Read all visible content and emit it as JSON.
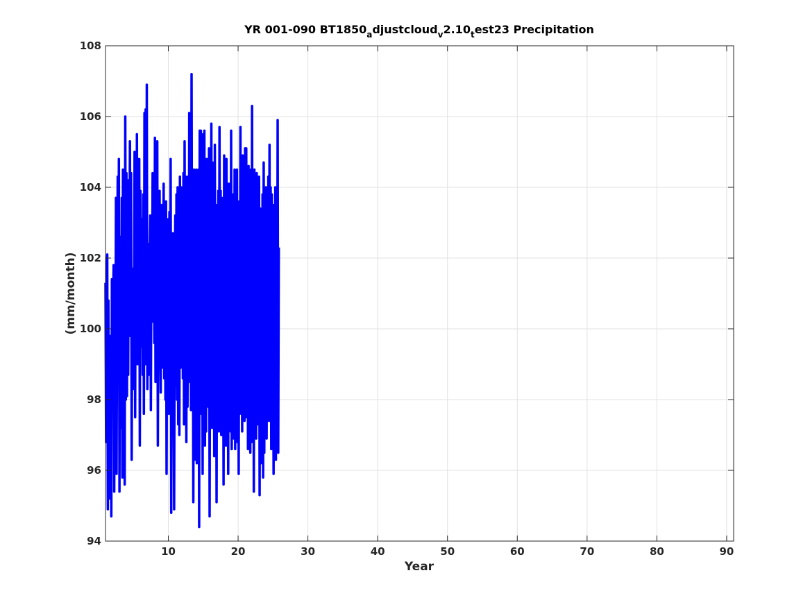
{
  "chart_data": {
    "type": "line",
    "title": {
      "part1": "YR 001-090 BT1850",
      "sub1": "a",
      "part2": "djustcloud",
      "sub2": "v",
      "part3": "2.10",
      "sub3": "t",
      "part4": "est23 Precipitation"
    },
    "xlabel": "Year",
    "ylabel": "(mm/month)",
    "xlim": [
      1,
      91
    ],
    "ylim": [
      94,
      108
    ],
    "xticks": [
      10,
      20,
      30,
      40,
      50,
      60,
      70,
      80,
      90
    ],
    "yticks": [
      94,
      96,
      98,
      100,
      102,
      104,
      106,
      108
    ],
    "grid": true,
    "legend": "none",
    "colors": {
      "line": "#0000ff",
      "grid": "#e1e1e1",
      "axis": "#262626"
    },
    "series": [
      {
        "x_start": 1,
        "x_step": 0.08333,
        "values": [
          101.3,
          96.8,
          101.4,
          102.1,
          94.9,
          100.8,
          95.4,
          98.2,
          95.2,
          99.8,
          94.7,
          101.4,
          98.2,
          100.7,
          101.8,
          95.4,
          101.5,
          97.2,
          103.7,
          95.9,
          101.2,
          104.3,
          99.2,
          104.8,
          95.4,
          102.6,
          98.9,
          97.2,
          103.7,
          95.8,
          104.5,
          100.4,
          104.4,
          95.6,
          106.0,
          98.0,
          104.4,
          98.1,
          103.3,
          98.7,
          104.2,
          99.8,
          105.3,
          100.3,
          104.4,
          96.3,
          101.6,
          98.3,
          101.7,
          99.7,
          105.0,
          97.5,
          104.0,
          99.4,
          105.5,
          99.0,
          103.5,
          100.2,
          104.8,
          96.7,
          103.9,
          99.5,
          100.4,
          103.1,
          98.7,
          103.8,
          97.6,
          106.1,
          99.0,
          106.2,
          99.2,
          106.9,
          98.3,
          102.4,
          98.7,
          102.3,
          102.0,
          103.2,
          97.7,
          102.8,
          100.2,
          104.4,
          100.6,
          103.9,
          99.6,
          105.4,
          98.5,
          102.6,
          101.2,
          105.3,
          96.7,
          102.1,
          99.4,
          103.9,
          99.9,
          98.2,
          103.5,
          98.9,
          102.1,
          100.5,
          104.1,
          98.6,
          103.1,
          98.0,
          103.6,
          95.9,
          101.9,
          99.0,
          103.1,
          97.6,
          103.3,
          98.4,
          104.8,
          94.8,
          101.4,
          100.3,
          102.7,
          99.3,
          94.9,
          100.6,
          103.2,
          98.4,
          103.8,
          98.0,
          104.0,
          97.3,
          102.7,
          97.0,
          104.3,
          98.9,
          104.0,
          99.1,
          103.4,
          98.6,
          104.4,
          97.3,
          105.3,
          99.4,
          103.2,
          96.8,
          104.3,
          97.8,
          102.8,
          98.5,
          106.1,
          99.4,
          102.5,
          97.7,
          107.2,
          99.3,
          103.7,
          95.1,
          104.5,
          96.3,
          103.5,
          98.5,
          104.5,
          96.2,
          103.9,
          97.0,
          104.5,
          94.4,
          105.6,
          97.6,
          105.6,
          97.9,
          103.9,
          95.9,
          105.5,
          97.6,
          105.6,
          96.7,
          103.2,
          97.1,
          104.8,
          98.5,
          103.5,
          97.8,
          105.1,
          94.7,
          102.3,
          98.4,
          105.8,
          97.2,
          104.7,
          98.3,
          103.6,
          96.4,
          105.2,
          97.8,
          102.9,
          95.1,
          103.5,
          97.4,
          103.9,
          97.1,
          105.7,
          98.9,
          103.9,
          97.0,
          103.7,
          97.0,
          103.0,
          95.6,
          104.9,
          97.8,
          103.5,
          96.7,
          104.8,
          97.3,
          102.3,
          95.9,
          104.1,
          97.3,
          103.5,
          97.1,
          105.6,
          96.6,
          103.3,
          97.4,
          103.8,
          96.9,
          104.5,
          96.6,
          103.9,
          96.8,
          104.5,
          97.7,
          102.9,
          95.9,
          103.6,
          97.6,
          105.7,
          97.8,
          104.2,
          97.1,
          104.9,
          97.7,
          103.0,
          97.4,
          105.1,
          98.9,
          105.1,
          97.5,
          103.5,
          96.6,
          104.6,
          96.8,
          103.3,
          96.5,
          104.5,
          96.8,
          106.3,
          97.2,
          103.6,
          95.4,
          104.5,
          97.3,
          104.2,
          96.9,
          104.4,
          97.3,
          103.6,
          97.6,
          104.3,
          95.3,
          103.4,
          96.2,
          102.8,
          97.1,
          103.8,
          95.8,
          104.7,
          96.5,
          103.3,
          97.6,
          104.0,
          96.9,
          102.9,
          98.4,
          104.3,
          97.4,
          105.2,
          97.7,
          104.0,
          96.6,
          103.8,
          97.5,
          102.9,
          95.9,
          103.5,
          97.8,
          104.0,
          96.3,
          103.1,
          98.0,
          105.9,
          96.5,
          102.3
        ]
      }
    ]
  }
}
